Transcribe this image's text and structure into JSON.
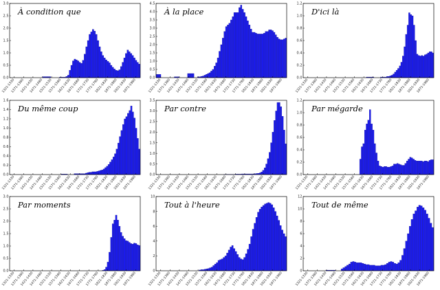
{
  "chart_data": [
    {
      "type": "bar",
      "title": "À condition que",
      "ylim": [
        0,
        3.0
      ],
      "yticks": [
        "0.0",
        "0.5",
        "1.0",
        "1.5",
        "2.0",
        "2.5",
        "3.0"
      ],
      "xticks": [
        "1321-1330",
        "1371-1380",
        "1421-1430",
        "1471-1480",
        "1521-1530",
        "1571-1580",
        "1621-1630",
        "1671-1680",
        "1721-1730",
        "1771-1780",
        "1821-1830",
        "1871-1880",
        "1921-1930",
        "1971-1980"
      ],
      "values": [
        0,
        0,
        0,
        0,
        0,
        0,
        0,
        0,
        0,
        0,
        0,
        0,
        0,
        0,
        0,
        0,
        0,
        0,
        0,
        0,
        0.04,
        0.04,
        0.04,
        0.04,
        0.04,
        0,
        0,
        0,
        0,
        0,
        0.02,
        0.02,
        0.02,
        0.02,
        0.05,
        0.1,
        0.3,
        0.5,
        0.68,
        0.75,
        0.72,
        0.68,
        0.62,
        0.58,
        0.7,
        0.95,
        1.25,
        1.5,
        1.75,
        1.85,
        1.95,
        1.88,
        1.75,
        1.5,
        1.25,
        1.05,
        0.9,
        0.8,
        0.72,
        0.66,
        0.6,
        0.5,
        0.42,
        0.35,
        0.3,
        0.28,
        0.32,
        0.45,
        0.62,
        0.8,
        0.98,
        1.12,
        1.05,
        0.98,
        0.9,
        0.8,
        0.7,
        0.62,
        0.55
      ]
    },
    {
      "type": "bar",
      "title": "À la place",
      "ylim": [
        0,
        4.5
      ],
      "yticks": [
        "0.0",
        "0.5",
        "1.0",
        "1.5",
        "2.0",
        "2.5",
        "3.0",
        "3.5",
        "4.0",
        "4.5"
      ],
      "xticks": [
        "1321-1330",
        "1371-1380",
        "1421-1430",
        "1471-1480",
        "1521-1530",
        "1571-1580",
        "1621-1630",
        "1671-1680",
        "1721-1730",
        "1771-1780",
        "1821-1830",
        "1871-1880",
        "1921-1930",
        "1971-1980"
      ],
      "values": [
        0.2,
        0.2,
        0.2,
        0,
        0,
        0,
        0,
        0,
        0,
        0,
        0,
        0.05,
        0.05,
        0.05,
        0,
        0,
        0,
        0,
        0,
        0.25,
        0.25,
        0.25,
        0.25,
        0,
        0,
        0.05,
        0.05,
        0.08,
        0.1,
        0.15,
        0.2,
        0.25,
        0.3,
        0.4,
        0.5,
        0.7,
        0.9,
        1.2,
        1.6,
        2.0,
        2.4,
        2.8,
        3.1,
        3.2,
        3.3,
        3.5,
        3.7,
        3.95,
        3.95,
        3.95,
        4.25,
        4.4,
        4.15,
        3.95,
        3.7,
        3.45,
        3.2,
        2.95,
        2.75,
        2.75,
        2.7,
        2.65,
        2.65,
        2.65,
        2.65,
        2.7,
        2.8,
        2.8,
        2.9,
        2.9,
        2.85,
        2.75,
        2.6,
        2.45,
        2.35,
        2.3,
        2.3,
        2.35,
        2.4
      ]
    },
    {
      "type": "bar",
      "title": "D'ici là",
      "ylim": [
        0,
        1.2
      ],
      "yticks": [
        "0.0",
        "0.2",
        "0.4",
        "0.6",
        "0.8",
        "1.0",
        "1.2"
      ],
      "xticks": [
        "1321-1330",
        "1371-1380",
        "1421-1430",
        "1471-1480",
        "1521-1530",
        "1571-1580",
        "1621-1630",
        "1671-1680",
        "1721-1730",
        "1771-1780",
        "1821-1830",
        "1871-1880",
        "1921-1930",
        "1971-1980"
      ],
      "values": [
        0,
        0,
        0,
        0,
        0,
        0,
        0,
        0,
        0,
        0,
        0,
        0,
        0,
        0,
        0,
        0,
        0,
        0,
        0,
        0,
        0,
        0,
        0,
        0,
        0,
        0,
        0,
        0,
        0,
        0,
        0,
        0,
        0,
        0,
        0,
        0,
        0,
        0,
        0,
        0,
        0.01,
        0.01,
        0.01,
        0.01,
        0.01,
        0,
        0,
        0,
        0,
        0.01,
        0.01,
        0.01,
        0.01,
        0.02,
        0.02,
        0.03,
        0.04,
        0.06,
        0.09,
        0.12,
        0.15,
        0.19,
        0.25,
        0.35,
        0.5,
        0.7,
        0.85,
        1.05,
        1.02,
        1.0,
        0.85,
        0.6,
        0.38,
        0.36,
        0.35,
        0.36,
        0.35,
        0.37,
        0.38,
        0.4,
        0.42,
        0.42,
        0.4
      ]
    },
    {
      "type": "bar",
      "title": "Du même coup",
      "ylim": [
        0,
        1.6
      ],
      "yticks": [
        "0.0",
        "0.2",
        "0.4",
        "0.6",
        "0.8",
        "1.0",
        "1.2",
        "1.4",
        "1.6"
      ],
      "xticks": [
        "1321-1330",
        "1371-1380",
        "1421-1430",
        "1471-1480",
        "1521-1530",
        "1571-1580",
        "1621-1630",
        "1671-1680",
        "1721-1730",
        "1771-1780",
        "1821-1830",
        "1871-1880",
        "1921-1930",
        "1971-1980"
      ],
      "values": [
        0,
        0,
        0,
        0,
        0,
        0,
        0,
        0,
        0,
        0,
        0,
        0,
        0,
        0,
        0,
        0,
        0,
        0,
        0,
        0,
        0,
        0,
        0,
        0,
        0,
        0,
        0,
        0,
        0,
        0,
        0,
        0,
        0.01,
        0.01,
        0.01,
        0.01,
        0,
        0,
        0,
        0,
        0.02,
        0.02,
        0.02,
        0.02,
        0.02,
        0.02,
        0.02,
        0.03,
        0.04,
        0.05,
        0.05,
        0.06,
        0.06,
        0.06,
        0.07,
        0.08,
        0.09,
        0.1,
        0.12,
        0.15,
        0.18,
        0.22,
        0.27,
        0.32,
        0.38,
        0.45,
        0.55,
        0.68,
        0.82,
        0.95,
        1.08,
        1.2,
        1.25,
        1.32,
        1.38,
        1.48,
        1.35,
        1.22,
        1.0,
        0.78,
        0.55
      ]
    },
    {
      "type": "bar",
      "title": "Par contre",
      "ylim": [
        0,
        3.5
      ],
      "yticks": [
        "0.0",
        "0.5",
        "1.0",
        "1.5",
        "2.0",
        "2.5",
        "3.0",
        "3.5"
      ],
      "xticks": [
        "1321-1330",
        "1371-1380",
        "1421-1430",
        "1471-1480",
        "1521-1530",
        "1571-1580",
        "1621-1630",
        "1671-1680",
        "1721-1730",
        "1771-1780",
        "1821-1830",
        "1871-1880",
        "1921-1930",
        "1971-1980"
      ],
      "values": [
        0,
        0,
        0,
        0,
        0,
        0,
        0,
        0,
        0,
        0,
        0,
        0,
        0,
        0,
        0,
        0,
        0,
        0,
        0,
        0,
        0,
        0,
        0,
        0,
        0,
        0,
        0,
        0,
        0,
        0,
        0,
        0,
        0,
        0,
        0,
        0,
        0,
        0,
        0,
        0,
        0,
        0,
        0.01,
        0.01,
        0.01,
        0.01,
        0.01,
        0.01,
        0.01,
        0.02,
        0.02,
        0.02,
        0.02,
        0.03,
        0.03,
        0.03,
        0.03,
        0.03,
        0.03,
        0.03,
        0.03,
        0.04,
        0.05,
        0.06,
        0.08,
        0.12,
        0.2,
        0.32,
        0.5,
        0.75,
        1.05,
        1.5,
        2.0,
        2.55,
        3.0,
        3.4,
        3.4,
        3.2,
        2.75,
        2.1,
        1.45
      ]
    },
    {
      "type": "bar",
      "title": "Par mégarde",
      "ylim": [
        0,
        1.2
      ],
      "yticks": [
        "0.0",
        "0.2",
        "0.4",
        "0.6",
        "0.8",
        "1.0",
        "1.2"
      ],
      "xticks": [
        "1321-1330",
        "1371-1380",
        "1421-1430",
        "1471-1480",
        "1521-1530",
        "1571-1580",
        "1621-1630",
        "1671-1680",
        "1721-1730",
        "1771-1780",
        "1821-1830",
        "1871-1880",
        "1921-1930",
        "1971-1980"
      ],
      "values": [
        0,
        0,
        0,
        0,
        0,
        0,
        0,
        0,
        0,
        0,
        0,
        0,
        0,
        0,
        0,
        0,
        0,
        0,
        0,
        0,
        0,
        0,
        0,
        0,
        0,
        0,
        0,
        0,
        0,
        0,
        0,
        0,
        0,
        0,
        0,
        0.25,
        0.45,
        0.5,
        0.72,
        0.82,
        0.88,
        1.05,
        0.82,
        0.72,
        0.5,
        0.35,
        0.22,
        0.14,
        0.13,
        0.12,
        0.13,
        0.13,
        0.12,
        0.12,
        0.13,
        0.14,
        0.17,
        0.17,
        0.18,
        0.17,
        0.16,
        0.15,
        0.15,
        0.18,
        0.22,
        0.25,
        0.28,
        0.27,
        0.25,
        0.23,
        0.22,
        0.22,
        0.22,
        0.22,
        0.21,
        0.22,
        0.22,
        0.21,
        0.23,
        0.24,
        0.24
      ]
    },
    {
      "type": "bar",
      "title": "Par moments",
      "ylim": [
        0,
        3.0
      ],
      "yticks": [
        "0.0",
        "0.5",
        "1.0",
        "1.5",
        "2.0",
        "2.5",
        "3.0"
      ],
      "xticks": [
        "1321-1330",
        "1371-1380",
        "1421-1430",
        "1471-1480",
        "1521-1530",
        "1571-1580",
        "1621-1630",
        "1671-1680",
        "1721-1730",
        "1771-1780",
        "1821-1830",
        "1871-1880",
        "1921-1930",
        "1971-1980"
      ],
      "values": [
        0,
        0,
        0,
        0,
        0,
        0,
        0,
        0,
        0,
        0,
        0,
        0,
        0,
        0,
        0,
        0,
        0,
        0,
        0,
        0,
        0,
        0,
        0,
        0,
        0,
        0,
        0,
        0,
        0,
        0,
        0,
        0,
        0,
        0,
        0,
        0,
        0,
        0,
        0,
        0,
        0,
        0,
        0,
        0,
        0,
        0,
        0,
        0,
        0,
        0,
        0,
        0,
        0,
        0,
        0,
        0,
        0.02,
        0.05,
        0.15,
        0.35,
        0.75,
        1.35,
        1.9,
        2.05,
        2.25,
        2.05,
        1.8,
        1.55,
        1.4,
        1.3,
        1.22,
        1.2,
        1.15,
        1.1,
        1.08,
        1.12,
        1.1,
        1.05,
        1.02
      ]
    },
    {
      "type": "bar",
      "title": "Tout à l'heure",
      "ylim": [
        0,
        10
      ],
      "yticks": [
        "0",
        "2",
        "4",
        "6",
        "8",
        "10"
      ],
      "xticks": [
        "1321-1330",
        "1371-1380",
        "1421-1430",
        "1471-1480",
        "1521-1530",
        "1571-1580",
        "1621-1630",
        "1671-1680",
        "1721-1730",
        "1771-1780",
        "1821-1830",
        "1871-1880",
        "1921-1930",
        "1971-1980"
      ],
      "values": [
        0,
        0,
        0,
        0,
        0,
        0,
        0,
        0,
        0,
        0,
        0,
        0,
        0,
        0,
        0,
        0,
        0,
        0,
        0,
        0,
        0,
        0,
        0,
        0,
        0,
        0.1,
        0.15,
        0.15,
        0.2,
        0.25,
        0.3,
        0.4,
        0.5,
        0.7,
        0.9,
        1.1,
        1.4,
        1.5,
        1.6,
        1.8,
        2.0,
        2.4,
        2.8,
        3.2,
        3.4,
        3.0,
        2.6,
        2.2,
        1.8,
        1.6,
        1.5,
        1.8,
        2.3,
        2.9,
        3.6,
        4.6,
        5.6,
        6.4,
        7.2,
        7.9,
        8.3,
        8.6,
        8.8,
        9.0,
        9.1,
        9.2,
        9.1,
        8.9,
        8.5,
        8.0,
        7.4,
        6.8,
        6.1,
        5.5,
        5.0,
        4.6
      ]
    },
    {
      "type": "bar",
      "title": "Tout de même",
      "ylim": [
        0,
        12
      ],
      "yticks": [
        "0",
        "2",
        "4",
        "6",
        "8",
        "10",
        "12"
      ],
      "xticks": [
        "1321-1330",
        "1371-1380",
        "1421-1430",
        "1471-1480",
        "1521-1530",
        "1571-1580",
        "1621-1630",
        "1671-1680",
        "1721-1730",
        "1771-1780",
        "1821-1830",
        "1871-1880",
        "1921-1930",
        "1971-1980"
      ],
      "values": [
        0,
        0,
        0,
        0,
        0,
        0,
        0,
        0,
        0,
        0,
        0,
        0,
        0.1,
        0.1,
        0.1,
        0.1,
        0.1,
        0,
        0,
        0,
        0.3,
        0.5,
        0.7,
        0.9,
        1.1,
        1.4,
        1.5,
        1.4,
        1.3,
        1.3,
        1.3,
        1.2,
        1.1,
        1.0,
        1.0,
        0.9,
        0.9,
        0.9,
        0.8,
        0.8,
        0.8,
        0.9,
        0.9,
        1.0,
        1.2,
        1.4,
        1.5,
        1.4,
        1.2,
        1.1,
        1.3,
        1.7,
        2.5,
        3.6,
        4.8,
        6.0,
        7.2,
        8.3,
        9.2,
        9.7,
        10.3,
        10.6,
        10.5,
        10.2,
        9.8,
        9.2,
        8.5,
        7.7,
        7.0
      ]
    }
  ]
}
